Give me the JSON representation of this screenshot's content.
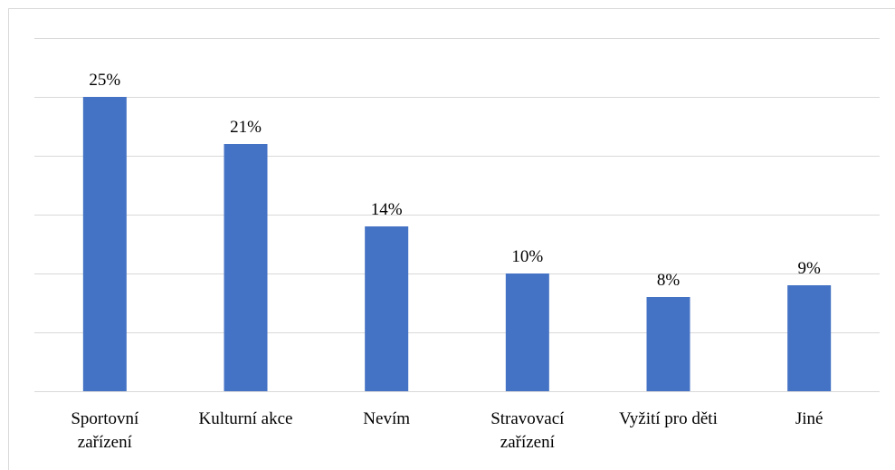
{
  "chart_data": {
    "type": "bar",
    "title": "",
    "xlabel": "",
    "ylabel": "",
    "categories": [
      [
        "Sportovní",
        "zařízení"
      ],
      [
        "Kulturní akce"
      ],
      [
        "Nevím"
      ],
      [
        "Stravovací",
        "zařízení"
      ],
      [
        "Vyžití pro děti"
      ],
      [
        "Jiné"
      ]
    ],
    "values": [
      25,
      21,
      14,
      10,
      8,
      9
    ],
    "data_labels": [
      "25%",
      "21%",
      "14%",
      "10%",
      "8%",
      "9%"
    ],
    "ylim": [
      0,
      30
    ],
    "y_gridline_step": 5,
    "grid": true,
    "y_tick_labels_visible": false,
    "bar_color": "#4472c4",
    "gridline_color": "#d9d9d9"
  }
}
